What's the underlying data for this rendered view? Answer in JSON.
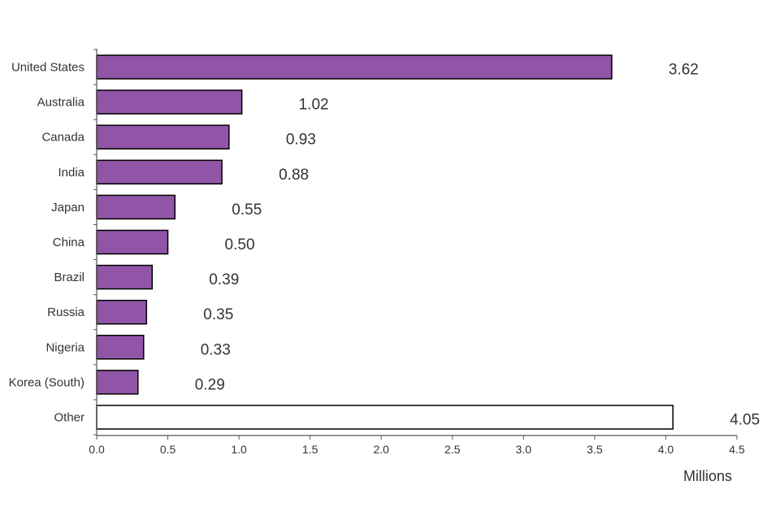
{
  "chart_data": {
    "type": "bar",
    "orientation": "horizontal",
    "categories": [
      "United States",
      "Australia",
      "Canada",
      "India",
      "Japan",
      "China",
      "Brazil",
      "Russia",
      "Nigeria",
      "Korea (South)",
      "Other"
    ],
    "values": [
      3.62,
      1.02,
      0.93,
      0.88,
      0.55,
      0.5,
      0.39,
      0.35,
      0.33,
      0.29,
      4.05
    ],
    "value_labels": [
      "3.62",
      "1.02",
      "0.93",
      "0.88",
      "0.55",
      "0.50",
      "0.39",
      "0.35",
      "0.33",
      "0.29",
      "4.05"
    ],
    "x_ticks": [
      "0.0",
      "0.5",
      "1.0",
      "1.5",
      "2.0",
      "2.5",
      "3.0",
      "3.5",
      "4.0",
      "4.5"
    ],
    "xlim": [
      0,
      4.5
    ],
    "xlabel": "Millions",
    "ylabel": "",
    "title": "",
    "grid": false,
    "legend": "none",
    "colors": {
      "bar_fill": "#9155a7",
      "other_fill": "#ffffff",
      "bar_stroke": "#000000",
      "axis": "#555555",
      "text": "#333333"
    }
  }
}
